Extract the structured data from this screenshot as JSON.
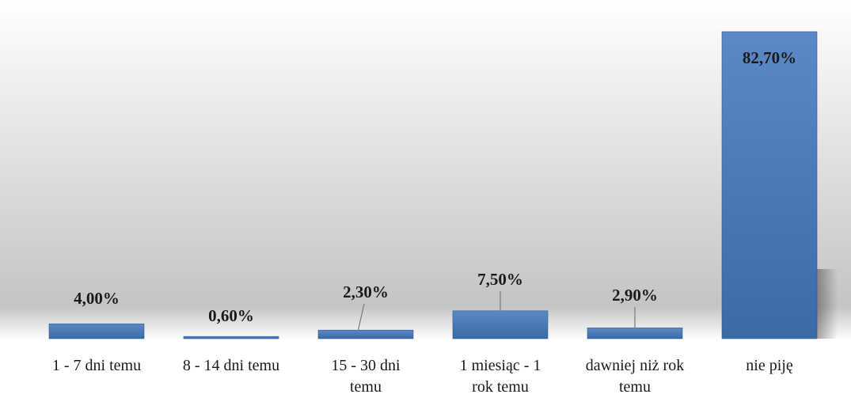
{
  "chart_data": {
    "type": "bar",
    "title": "",
    "xlabel": "",
    "ylabel": "",
    "ylim": [
      0,
      82.7
    ],
    "grid": false,
    "legend": "none",
    "categories": [
      [
        "1 - 7 dni temu"
      ],
      [
        "8 - 14 dni temu"
      ],
      [
        "15 - 30 dni",
        "temu"
      ],
      [
        "1 miesiąc - 1",
        "rok temu"
      ],
      [
        "dawniej niż rok",
        "temu"
      ],
      [
        "nie piję"
      ]
    ],
    "values": [
      4.0,
      0.6,
      2.3,
      7.5,
      2.9,
      82.7
    ],
    "data_labels": [
      "4,00%",
      "0,60%",
      "2,30%",
      "7,50%",
      "2,90%",
      "82,70%"
    ],
    "colors": {
      "bar_top": "#5b89c6",
      "bar_bottom": "#3b6aa7",
      "bar_edge": "#2f5a93",
      "leader_line": "#7f7f7f",
      "background_top": "#ffffff",
      "background_bottom": "#c4c4c4",
      "text": "#1a1a1a"
    }
  }
}
